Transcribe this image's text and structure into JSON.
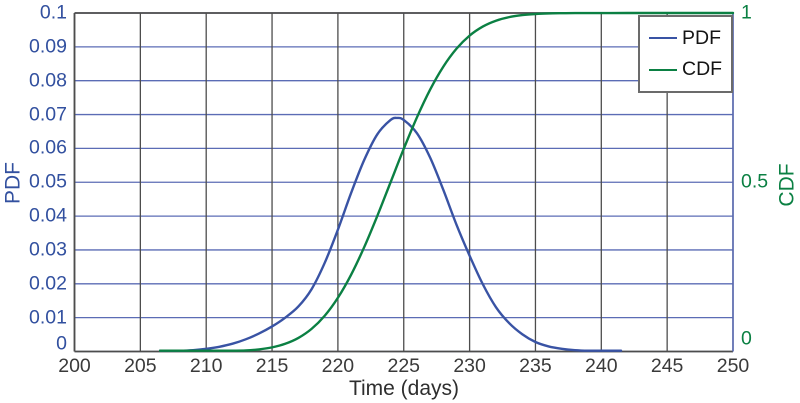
{
  "chart_data": {
    "type": "line",
    "title": "",
    "xlabel": "Time (days)",
    "ylabel_left": "PDF",
    "ylabel_right": "CDF",
    "xlim": [
      200,
      250
    ],
    "ylim_left": [
      0,
      0.1
    ],
    "ylim_right": [
      0,
      1
    ],
    "grid": true,
    "x_ticks": {
      "values": [
        200,
        205,
        210,
        215,
        220,
        225,
        230,
        235,
        240,
        245,
        250
      ],
      "labels": [
        "200",
        "205",
        "210",
        "215",
        "220",
        "225",
        "230",
        "235",
        "240",
        "245",
        "250"
      ]
    },
    "y_ticks_left": {
      "values": [
        0,
        0.01,
        0.02,
        0.03,
        0.04,
        0.05,
        0.06,
        0.07,
        0.08,
        0.09,
        0.1
      ],
      "labels": [
        "0",
        "0.01",
        "0.02",
        "0.03",
        "0.04",
        "0.05",
        "0.06",
        "0.07",
        "0.08",
        "0.09",
        "0.1"
      ]
    },
    "y_ticks_right": {
      "values": [
        0,
        0.5,
        1
      ],
      "labels": [
        "0",
        "0.5",
        "1"
      ]
    },
    "legend": {
      "position": "top-right",
      "items": [
        {
          "label": "PDF",
          "color": "#3953a4"
        },
        {
          "label": "CDF",
          "color": "#0b8043"
        }
      ]
    },
    "series": [
      {
        "name": "PDF",
        "axis": "left",
        "color": "#3953a4",
        "x": [
          206.5,
          207,
          208,
          209,
          210,
          211,
          212,
          213,
          214,
          215,
          216,
          217,
          218,
          219,
          220,
          221,
          222,
          223,
          224,
          224.5,
          225,
          226,
          227,
          228,
          229,
          230,
          231,
          232,
          233,
          234,
          235,
          236,
          237,
          238,
          239,
          240,
          241,
          241.5
        ],
        "y": [
          0,
          0.0001,
          0.0002,
          0.0004,
          0.0008,
          0.0014,
          0.0023,
          0.0036,
          0.0053,
          0.0074,
          0.01,
          0.0133,
          0.0184,
          0.0262,
          0.036,
          0.0468,
          0.0566,
          0.0642,
          0.0684,
          0.069,
          0.0684,
          0.0645,
          0.0573,
          0.0478,
          0.0375,
          0.0283,
          0.0199,
          0.0131,
          0.0084,
          0.0051,
          0.0028,
          0.0015,
          0.0008,
          0.0004,
          0.0002,
          0.0001,
          0.0001,
          0
        ]
      },
      {
        "name": "CDF",
        "axis": "right",
        "color": "#0b8043",
        "x": [
          206.5,
          208,
          210,
          211,
          212,
          213,
          214,
          215,
          216,
          217,
          218,
          219,
          220,
          221,
          222,
          223,
          224,
          225,
          226,
          227,
          228,
          229,
          230,
          231,
          232,
          233,
          234,
          235,
          236,
          237,
          238,
          240,
          242,
          245,
          250
        ],
        "y": [
          0,
          0.0001,
          0.0003,
          0.0007,
          0.0014,
          0.003,
          0.0062,
          0.0122,
          0.0228,
          0.0401,
          0.0668,
          0.1056,
          0.1587,
          0.2266,
          0.3085,
          0.4013,
          0.5,
          0.5987,
          0.6915,
          0.7734,
          0.8413,
          0.8944,
          0.9332,
          0.9599,
          0.9772,
          0.9878,
          0.9938,
          0.997,
          0.9987,
          0.9994,
          0.9997,
          0.9999,
          1,
          1,
          1
        ]
      }
    ],
    "colors": {
      "pdf_line": "#3953a4",
      "cdf_line": "#0b8043",
      "grid_horizontal": "#5b6cb5",
      "grid_vertical": "#4d4d4d",
      "spine": "#4d4d4d",
      "right_spine": "#5b6cb5",
      "left_tick_text": "#32509f",
      "right_tick_text": "#0b8043",
      "x_tick_text": "#3a3a3a",
      "background": "#ffffff"
    }
  }
}
